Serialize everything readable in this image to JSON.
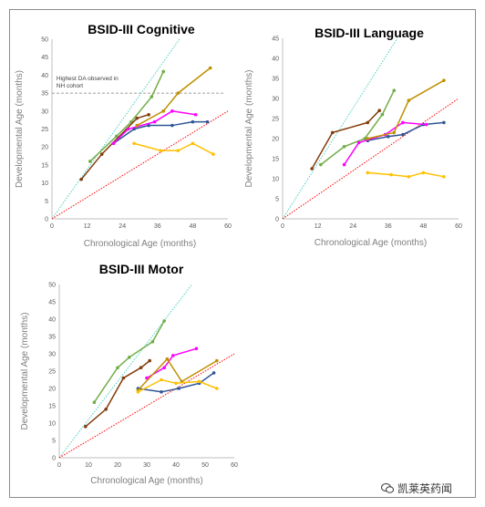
{
  "watermark": {
    "text": "凯莱英药闻",
    "icon": "wechat-icon"
  },
  "colors": {
    "green": "#70ad47",
    "brown": "#843c0c",
    "navy": "#2f5597",
    "magenta": "#ff00ff",
    "gold": "#bf9000",
    "yellow": "#ffc000",
    "cyan_ref": "#4dd0c0",
    "red_ref": "#ff0000"
  },
  "chart_data": [
    {
      "id": "cognitive",
      "type": "line",
      "title": "BSID-III Cognitive",
      "xlabel": "Chronological Age (months)",
      "ylabel": "Developmental Age (months)",
      "xlim": [
        0,
        60
      ],
      "ylim": [
        0,
        50
      ],
      "xticks": [
        "0",
        "12",
        "24",
        "36",
        "48",
        "60"
      ],
      "yticks": [
        "0",
        "5",
        "10",
        "15",
        "20",
        "25",
        "30",
        "35",
        "40",
        "45",
        "50"
      ],
      "grid": false,
      "legend": "none",
      "reference_lines": [
        {
          "slope": 1.15,
          "style": "dotted",
          "color": "#4dd0c0"
        },
        {
          "slope": 0.5,
          "style": "dotted",
          "color": "#ff0000"
        }
      ],
      "hline": {
        "y": 35,
        "label": "Highest DA observed in NH cohort"
      },
      "series": [
        {
          "color": "#70ad47",
          "x": [
            13,
            22,
            27,
            34,
            38
          ],
          "y": [
            16,
            23,
            27,
            34,
            41
          ]
        },
        {
          "color": "#843c0c",
          "x": [
            10,
            17,
            29,
            33
          ],
          "y": [
            11,
            18,
            28,
            29
          ]
        },
        {
          "color": "#2f5597",
          "x": [
            21,
            28,
            33,
            41,
            48,
            53
          ],
          "y": [
            21,
            25,
            26,
            26,
            27,
            27
          ]
        },
        {
          "color": "#ff00ff",
          "x": [
            21,
            26,
            35,
            41,
            49
          ],
          "y": [
            21,
            25,
            27,
            30,
            29
          ]
        },
        {
          "color": "#bf9000",
          "x": [
            29,
            38,
            43,
            54
          ],
          "y": [
            26,
            30,
            35,
            42
          ]
        },
        {
          "color": "#ffc000",
          "x": [
            28,
            37,
            43,
            48,
            55
          ],
          "y": [
            21,
            19,
            19,
            21,
            18
          ]
        }
      ]
    },
    {
      "id": "language",
      "type": "line",
      "title": "BSID-III Language",
      "xlabel": "Chronological Age (months)",
      "ylabel": "Developmental Age (months)",
      "xlim": [
        0,
        60
      ],
      "ylim": [
        0,
        45
      ],
      "xticks": [
        "0",
        "12",
        "24",
        "36",
        "48",
        "60"
      ],
      "yticks": [
        "0",
        "5",
        "10",
        "15",
        "20",
        "25",
        "30",
        "35",
        "40",
        "45"
      ],
      "grid": false,
      "legend": "none",
      "reference_lines": [
        {
          "slope": 1.15,
          "style": "dotted",
          "color": "#4dd0c0"
        },
        {
          "slope": 0.5,
          "style": "dotted",
          "color": "#ff0000"
        }
      ],
      "series": [
        {
          "color": "#70ad47",
          "x": [
            13,
            21,
            28,
            34,
            38
          ],
          "y": [
            13.5,
            18,
            20,
            26,
            32
          ]
        },
        {
          "color": "#843c0c",
          "x": [
            10,
            17,
            29,
            33
          ],
          "y": [
            12.5,
            21.5,
            24,
            27
          ]
        },
        {
          "color": "#2f5597",
          "x": [
            29,
            36,
            41,
            48,
            55
          ],
          "y": [
            19.5,
            20.5,
            21,
            23.5,
            24
          ]
        },
        {
          "color": "#ff00ff",
          "x": [
            21,
            26,
            35,
            41,
            49
          ],
          "y": [
            13.5,
            19,
            21,
            24,
            23.5
          ]
        },
        {
          "color": "#bf9000",
          "x": [
            29,
            38,
            43,
            55
          ],
          "y": [
            20,
            21.5,
            29.5,
            34.5
          ]
        },
        {
          "color": "#ffc000",
          "x": [
            29,
            37,
            43,
            48,
            55
          ],
          "y": [
            11.5,
            11,
            10.5,
            11.5,
            10.5
          ]
        }
      ]
    },
    {
      "id": "motor",
      "type": "line",
      "title": "BSID-III Motor",
      "xlabel": "Chronological Age (months)",
      "ylabel": "Developmental Age (months)",
      "xlim": [
        0,
        60
      ],
      "ylim": [
        0,
        50
      ],
      "xticks": [
        "0",
        "10",
        "20",
        "30",
        "40",
        "50",
        "60"
      ],
      "yticks": [
        "0",
        "5",
        "10",
        "15",
        "20",
        "25",
        "30",
        "35",
        "40",
        "45",
        "50"
      ],
      "grid": false,
      "legend": "none",
      "reference_lines": [
        {
          "slope": 1.1,
          "style": "dotted",
          "color": "#4dd0c0"
        },
        {
          "slope": 0.5,
          "style": "dotted",
          "color": "#ff0000"
        }
      ],
      "series": [
        {
          "color": "#70ad47",
          "x": [
            12,
            20,
            24,
            32,
            36
          ],
          "y": [
            16,
            26,
            29,
            33.5,
            39.5
          ]
        },
        {
          "color": "#843c0c",
          "x": [
            9,
            16,
            22,
            28,
            31
          ],
          "y": [
            9,
            14,
            23,
            26,
            28
          ]
        },
        {
          "color": "#2f5597",
          "x": [
            27,
            35,
            41,
            48,
            53
          ],
          "y": [
            20,
            19,
            20,
            21.5,
            24.5
          ]
        },
        {
          "color": "#ff00ff",
          "x": [
            30,
            36,
            39,
            47
          ],
          "y": [
            23,
            26,
            29.5,
            31.5
          ]
        },
        {
          "color": "#bf9000",
          "x": [
            27,
            37,
            42,
            54
          ],
          "y": [
            19.5,
            28.5,
            22,
            28
          ]
        },
        {
          "color": "#ffc000",
          "x": [
            27,
            35,
            40,
            48,
            54
          ],
          "y": [
            19,
            22.5,
            21.5,
            22,
            20
          ]
        }
      ]
    }
  ]
}
